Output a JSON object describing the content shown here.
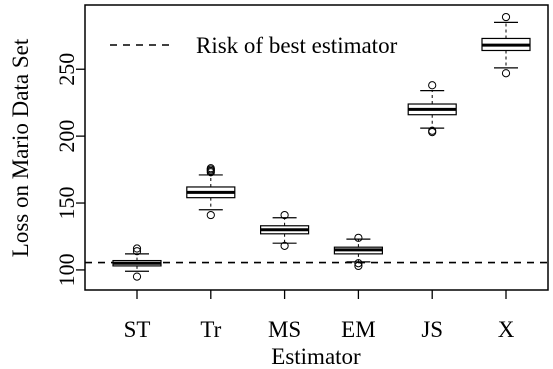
{
  "chart_data": {
    "type": "boxplot",
    "xlabel": "Estimator",
    "ylabel": "Loss on Mario Data Set",
    "categories": [
      "ST",
      "Tr",
      "MS",
      "EM",
      "JS",
      "X"
    ],
    "ylim": [
      85,
      298
    ],
    "yticks": [
      100,
      150,
      200,
      250
    ],
    "boxes": [
      {
        "label": "ST",
        "whisker_low": 99,
        "q1": 103,
        "median": 105,
        "q3": 107,
        "whisker_high": 112,
        "outliers": [
          95,
          114,
          116
        ]
      },
      {
        "label": "Tr",
        "whisker_low": 145,
        "q1": 154,
        "median": 158,
        "q3": 162,
        "whisker_high": 171,
        "outliers": [
          141,
          173,
          174,
          175,
          176
        ]
      },
      {
        "label": "MS",
        "whisker_low": 120,
        "q1": 127,
        "median": 130,
        "q3": 133,
        "whisker_high": 139,
        "outliers": [
          118,
          141
        ]
      },
      {
        "label": "EM",
        "whisker_low": 106,
        "q1": 112,
        "median": 115,
        "q3": 117,
        "whisker_high": 123,
        "outliers": [
          103,
          105,
          124
        ]
      },
      {
        "label": "JS",
        "whisker_low": 206,
        "q1": 216,
        "median": 220,
        "q3": 224,
        "whisker_high": 234,
        "outliers": [
          203,
          204,
          238
        ]
      },
      {
        "label": "X",
        "whisker_low": 251,
        "q1": 264,
        "median": 268,
        "q3": 273,
        "whisker_high": 285,
        "outliers": [
          247,
          289
        ]
      }
    ],
    "reference_line": {
      "value": 105.5,
      "style": "dashed"
    },
    "legend": {
      "position": "top-left",
      "entries": [
        {
          "label": "Risk of best estimator",
          "style": "dashed"
        }
      ]
    },
    "grid": false
  }
}
